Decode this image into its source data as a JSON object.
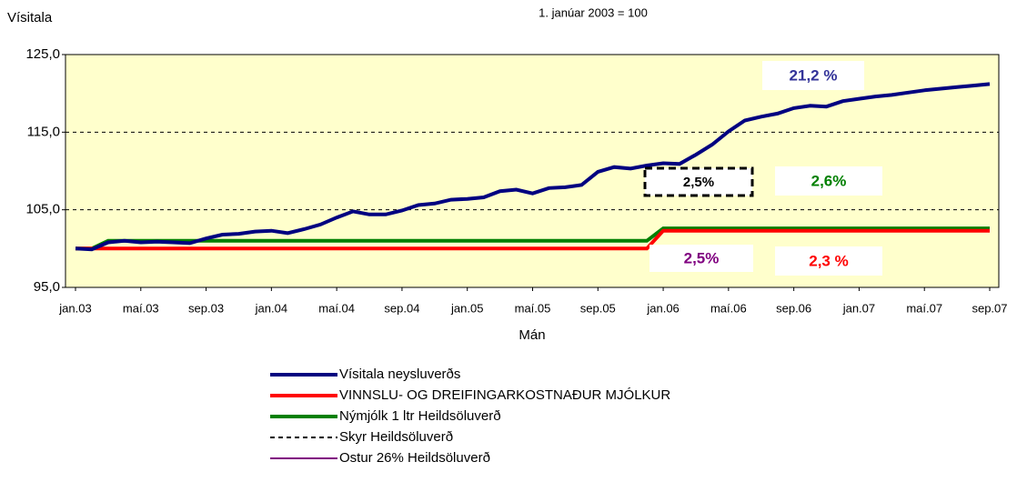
{
  "chart_data": {
    "type": "line",
    "y_label": "Vísitala",
    "subtitle": "1. janúar 2003 = 100",
    "x_label": "Mán",
    "categories": [
      "jan.03",
      null,
      null,
      null,
      "maí.03",
      null,
      null,
      null,
      "sep.03",
      null,
      null,
      null,
      "jan.04",
      null,
      null,
      null,
      "maí.04",
      null,
      null,
      null,
      "sep.04",
      null,
      null,
      null,
      "jan.05",
      null,
      null,
      null,
      "maí.05",
      null,
      null,
      null,
      "sep.05",
      null,
      null,
      null,
      "jan.06",
      null,
      null,
      null,
      "maí.06",
      null,
      null,
      null,
      "sep.06",
      null,
      null,
      null,
      "jan.07",
      null,
      null,
      null,
      "maí.07",
      null,
      null,
      null,
      "sep.07"
    ],
    "ylim": [
      95,
      125
    ],
    "yticks": [
      {
        "value": 95,
        "label": "95,0"
      },
      {
        "value": 105,
        "label": "105,0"
      },
      {
        "value": 115,
        "label": "115,0"
      },
      {
        "value": 125,
        "label": "125,0"
      }
    ],
    "grid": true,
    "background": "#ffffcc",
    "series": [
      {
        "name": "Skyr Heildsöluverð",
        "color": "#000000",
        "dash": true,
        "width": 2,
        "values": [
          100,
          100,
          100,
          100,
          100,
          100,
          100,
          100,
          100,
          100,
          100,
          100,
          100,
          100,
          100,
          100,
          100,
          100,
          100,
          100,
          100,
          100,
          100,
          100,
          100,
          100,
          100,
          100,
          100,
          100,
          100,
          100,
          100,
          100,
          100,
          100,
          102.5,
          102.5,
          102.5,
          102.5,
          102.5,
          102.5,
          102.5,
          102.5,
          102.5,
          102.5,
          102.5,
          102.5,
          102.5,
          102.5,
          102.5,
          102.5,
          102.5,
          102.5,
          102.5,
          102.5,
          102.5
        ]
      },
      {
        "name": "Ostur 26% Heildsöluverð",
        "color": "#800080",
        "width": 2,
        "values": [
          100,
          100,
          100,
          100,
          100,
          100,
          100,
          100,
          100,
          100,
          100,
          100,
          100,
          100,
          100,
          100,
          100,
          100,
          100,
          100,
          100,
          100,
          100,
          100,
          100,
          100,
          100,
          100,
          100,
          100,
          100,
          100,
          100,
          100,
          100,
          100,
          102.5,
          102.5,
          102.5,
          102.5,
          102.5,
          102.5,
          102.5,
          102.5,
          102.5,
          102.5,
          102.5,
          102.5,
          102.5,
          102.5,
          102.5,
          102.5,
          102.5,
          102.5,
          102.5,
          102.5,
          102.5
        ]
      },
      {
        "name": "Nýmjólk 1 ltr Heildsöluverð",
        "color": "#008000",
        "width": 4,
        "values": [
          100,
          100,
          101,
          101,
          101,
          101,
          101,
          101,
          101,
          101,
          101,
          101,
          101,
          101,
          101,
          101,
          101,
          101,
          101,
          101,
          101,
          101,
          101,
          101,
          101,
          101,
          101,
          101,
          101,
          101,
          101,
          101,
          101,
          101,
          101,
          101,
          102.6,
          102.6,
          102.6,
          102.6,
          102.6,
          102.6,
          102.6,
          102.6,
          102.6,
          102.6,
          102.6,
          102.6,
          102.6,
          102.6,
          102.6,
          102.6,
          102.6,
          102.6,
          102.6,
          102.6,
          102.6
        ]
      },
      {
        "name": "VINNSLU- OG DREIFINGARKOSTNAÐUR MJÓLKUR",
        "color": "#ff0000",
        "width": 4,
        "values": [
          100,
          100,
          100,
          100,
          100,
          100,
          100,
          100,
          100,
          100,
          100,
          100,
          100,
          100,
          100,
          100,
          100,
          100,
          100,
          100,
          100,
          100,
          100,
          100,
          100,
          100,
          100,
          100,
          100,
          100,
          100,
          100,
          100,
          100,
          100,
          100,
          102.3,
          102.3,
          102.3,
          102.3,
          102.3,
          102.3,
          102.3,
          102.3,
          102.3,
          102.3,
          102.3,
          102.3,
          102.3,
          102.3,
          102.3,
          102.3,
          102.3,
          102.3,
          102.3,
          102.3,
          102.3
        ]
      },
      {
        "name": "Vísitala neysluverðs",
        "color": "#000080",
        "width": 4,
        "values": [
          100,
          99.9,
          100.8,
          101,
          100.8,
          100.9,
          100.8,
          100.7,
          101.3,
          101.8,
          101.9,
          102.2,
          102.3,
          102,
          102.5,
          103.1,
          104,
          104.8,
          104.4,
          104.4,
          104.9,
          105.6,
          105.8,
          106.3,
          106.4,
          106.6,
          107.4,
          107.6,
          107.1,
          107.8,
          107.9,
          108.2,
          109.9,
          110.5,
          110.3,
          110.7,
          111,
          110.9,
          112.1,
          113.4,
          115.1,
          116.5,
          117,
          117.4,
          118.1,
          118.4,
          118.3,
          119,
          119.3,
          119.6,
          119.8,
          120.1,
          120.4,
          120.6,
          120.8,
          121,
          121.2
        ]
      }
    ],
    "annotations": [
      {
        "text": "21,2 %",
        "color": "#333399"
      },
      {
        "text": "2,5%",
        "color": "#000000",
        "dash": true
      },
      {
        "text": "2,6%",
        "color": "#008000"
      },
      {
        "text": "2,5%",
        "color": "#800080"
      },
      {
        "text": "2,3 %",
        "color": "#ff0000"
      }
    ],
    "legend_order": [
      4,
      3,
      2,
      0,
      1
    ]
  }
}
